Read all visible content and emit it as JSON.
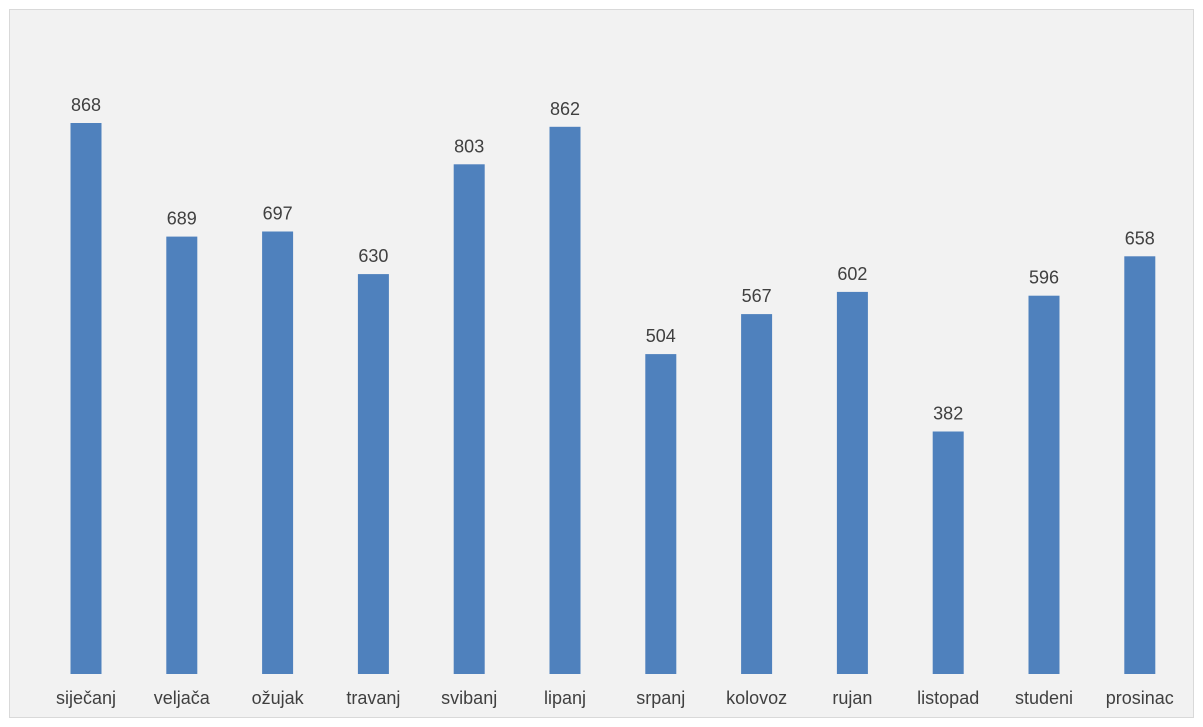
{
  "chart_data": {
    "type": "bar",
    "categories": [
      "siječanj",
      "veljača",
      "ožujak",
      "travanj",
      "svibanj",
      "lipanj",
      "srpanj",
      "kolovoz",
      "rujan",
      "listopad",
      "studeni",
      "prosinac"
    ],
    "values": [
      868,
      689,
      697,
      630,
      803,
      862,
      504,
      567,
      602,
      382,
      596,
      658
    ],
    "title": "",
    "xlabel": "",
    "ylabel": "",
    "ylim": [
      0,
      1000
    ],
    "grid": false,
    "legend": "none",
    "data_labels": true,
    "colors": {
      "bar": "#4f81bd",
      "background": "#f2f2f2",
      "label": "#404040"
    }
  }
}
